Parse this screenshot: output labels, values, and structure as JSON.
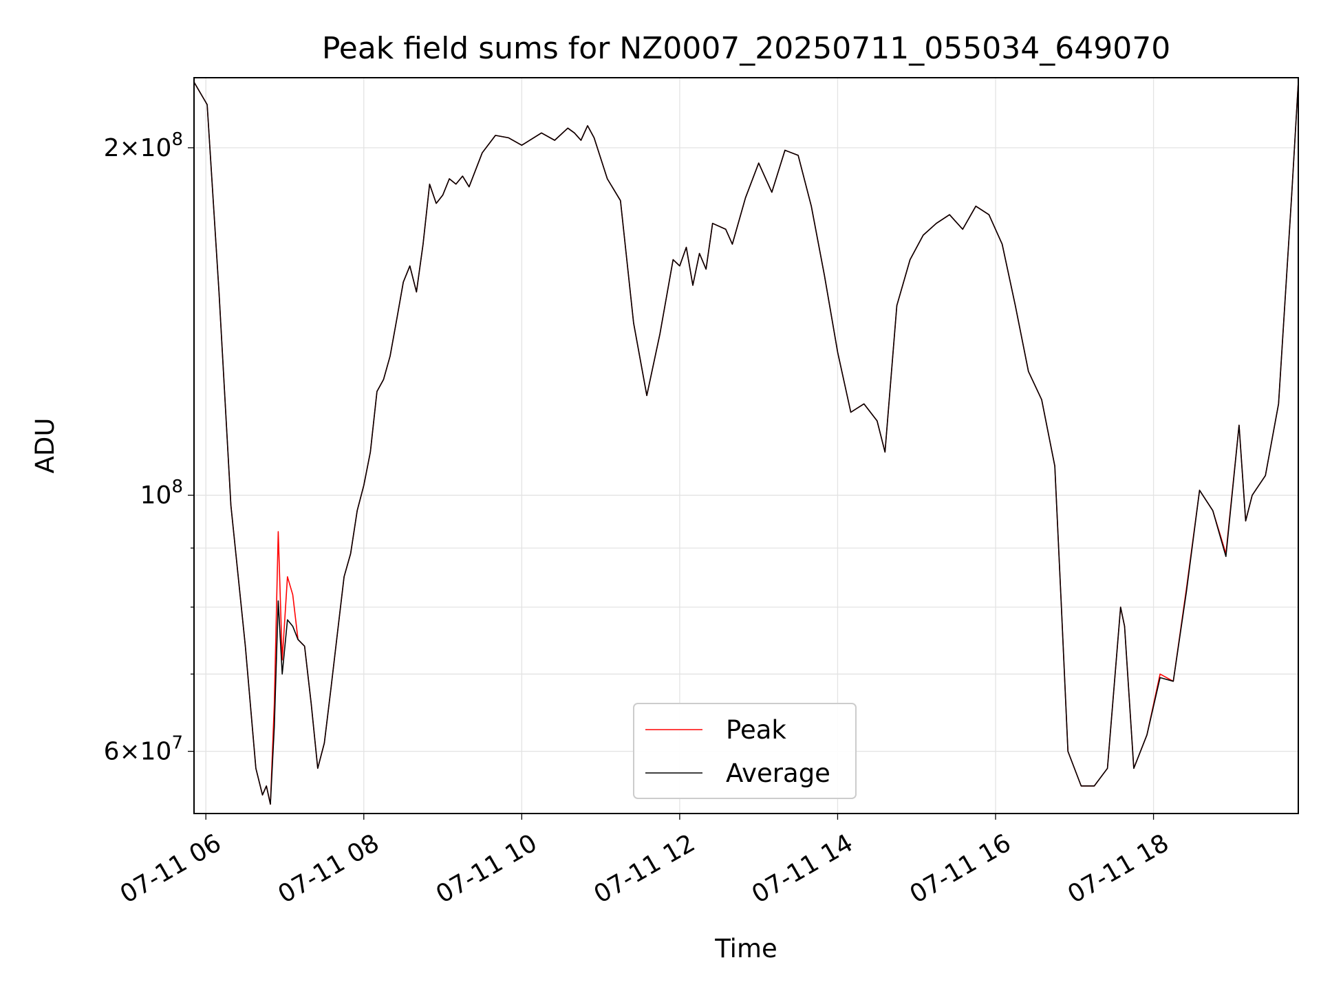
{
  "chart_data": {
    "type": "line",
    "title": "Peak field sums for NZ0007_20250711_055034_649070",
    "xlabel": "Time",
    "ylabel": "ADU",
    "yscale": "log",
    "ylim": [
      53000000,
      230000000
    ],
    "xlim": [
      "2025-07-11 05:51",
      "2025-07-11 19:50"
    ],
    "grid": true,
    "legend_position": "lower center",
    "x_tick_labels": [
      "07-11 06",
      "07-11 08",
      "07-11 10",
      "07-11 12",
      "07-11 14",
      "07-11 16",
      "07-11 18"
    ],
    "x_ticks": [
      "2025-07-11 06:00",
      "2025-07-11 08:00",
      "2025-07-11 10:00",
      "2025-07-11 12:00",
      "2025-07-11 14:00",
      "2025-07-11 16:00",
      "2025-07-11 18:00"
    ],
    "y_ticks": [
      {
        "value": 200000000,
        "mantissa": "2",
        "exponent": "8"
      },
      {
        "value": 100000000,
        "mantissa": "",
        "exponent": "8"
      },
      {
        "value": 60000000,
        "mantissa": "6",
        "exponent": "7"
      }
    ],
    "y_minor_ticks": [
      70000000,
      80000000,
      90000000
    ],
    "x": [
      "2025-07-11 05:51",
      "2025-07-11 06:01",
      "2025-07-11 06:10",
      "2025-07-11 06:19",
      "2025-07-11 06:30",
      "2025-07-11 06:38",
      "2025-07-11 06:43",
      "2025-07-11 06:46",
      "2025-07-11 06:49",
      "2025-07-11 06:52",
      "2025-07-11 06:55",
      "2025-07-11 06:58",
      "2025-07-11 07:02",
      "2025-07-11 07:06",
      "2025-07-11 07:10",
      "2025-07-11 07:15",
      "2025-07-11 07:20",
      "2025-07-11 07:25",
      "2025-07-11 07:30",
      "2025-07-11 07:35",
      "2025-07-11 07:40",
      "2025-07-11 07:45",
      "2025-07-11 07:50",
      "2025-07-11 07:55",
      "2025-07-11 08:00",
      "2025-07-11 08:05",
      "2025-07-11 08:10",
      "2025-07-11 08:15",
      "2025-07-11 08:20",
      "2025-07-11 08:25",
      "2025-07-11 08:30",
      "2025-07-11 08:35",
      "2025-07-11 08:40",
      "2025-07-11 08:45",
      "2025-07-11 08:50",
      "2025-07-11 08:55",
      "2025-07-11 09:00",
      "2025-07-11 09:05",
      "2025-07-11 09:10",
      "2025-07-11 09:15",
      "2025-07-11 09:20",
      "2025-07-11 09:30",
      "2025-07-11 09:40",
      "2025-07-11 09:50",
      "2025-07-11 10:00",
      "2025-07-11 10:15",
      "2025-07-11 10:25",
      "2025-07-11 10:35",
      "2025-07-11 10:40",
      "2025-07-11 10:45",
      "2025-07-11 10:50",
      "2025-07-11 10:55",
      "2025-07-11 11:05",
      "2025-07-11 11:15",
      "2025-07-11 11:25",
      "2025-07-11 11:35",
      "2025-07-11 11:45",
      "2025-07-11 11:55",
      "2025-07-11 12:00",
      "2025-07-11 12:05",
      "2025-07-11 12:10",
      "2025-07-11 12:15",
      "2025-07-11 12:20",
      "2025-07-11 12:25",
      "2025-07-11 12:35",
      "2025-07-11 12:40",
      "2025-07-11 12:50",
      "2025-07-11 13:00",
      "2025-07-11 13:10",
      "2025-07-11 13:20",
      "2025-07-11 13:30",
      "2025-07-11 13:40",
      "2025-07-11 13:50",
      "2025-07-11 14:00",
      "2025-07-11 14:10",
      "2025-07-11 14:20",
      "2025-07-11 14:30",
      "2025-07-11 14:36",
      "2025-07-11 14:45",
      "2025-07-11 14:55",
      "2025-07-11 15:05",
      "2025-07-11 15:15",
      "2025-07-11 15:25",
      "2025-07-11 15:35",
      "2025-07-11 15:45",
      "2025-07-11 15:55",
      "2025-07-11 16:05",
      "2025-07-11 16:15",
      "2025-07-11 16:25",
      "2025-07-11 16:35",
      "2025-07-11 16:45",
      "2025-07-11 16:50",
      "2025-07-11 16:55",
      "2025-07-11 17:05",
      "2025-07-11 17:15",
      "2025-07-11 17:25",
      "2025-07-11 17:35",
      "2025-07-11 17:38",
      "2025-07-11 17:45",
      "2025-07-11 17:55",
      "2025-07-11 18:05",
      "2025-07-11 18:15",
      "2025-07-11 18:25",
      "2025-07-11 18:35",
      "2025-07-11 18:45",
      "2025-07-11 18:55",
      "2025-07-11 19:05",
      "2025-07-11 19:10",
      "2025-07-11 19:15",
      "2025-07-11 19:25",
      "2025-07-11 19:35",
      "2025-07-11 19:45",
      "2025-07-11 19:50"
    ],
    "series": [
      {
        "name": "Peak",
        "color": "#ff0000",
        "values": [
          228000000,
          218000000,
          150000000,
          98000000,
          74000000,
          58000000,
          55000000,
          56000000,
          54000000,
          66000000,
          93000000,
          72000000,
          85000000,
          82000000,
          75000000,
          74000000,
          66000000,
          58000000,
          61000000,
          68000000,
          76000000,
          85000000,
          89000000,
          97000000,
          102000000,
          109000000,
          123000000,
          126000000,
          132000000,
          142000000,
          153000000,
          158000000,
          150000000,
          165000000,
          186000000,
          179000000,
          182000000,
          188000000,
          186000000,
          189000000,
          185000000,
          198000000,
          205000000,
          204000000,
          201000000,
          206000000,
          203000000,
          208000000,
          206000000,
          203000000,
          209000000,
          204000000,
          188000000,
          180000000,
          141000000,
          122000000,
          138000000,
          160000000,
          158000000,
          164000000,
          152000000,
          162000000,
          157000000,
          172000000,
          170000000,
          165000000,
          181000000,
          194000000,
          183000000,
          199000000,
          197000000,
          178000000,
          155000000,
          133000000,
          118000000,
          120000000,
          116000000,
          109000000,
          146000000,
          160000000,
          168000000,
          172000000,
          175000000,
          170000000,
          178000000,
          175000000,
          165000000,
          146000000,
          128000000,
          121000000,
          106000000,
          80000000,
          60000000,
          56000000,
          56000000,
          58000000,
          80000000,
          77000000,
          58000000,
          62000000,
          70000000,
          69000000,
          83000000,
          101000000,
          97000000,
          89000000,
          115000000,
          95000000,
          100000000,
          104000000,
          120000000,
          182000000,
          228000000
        ]
      },
      {
        "name": "Average",
        "color": "#000000",
        "values": [
          228000000,
          218000000,
          150000000,
          98000000,
          74000000,
          58000000,
          55000000,
          56000000,
          54000000,
          63000000,
          81000000,
          70000000,
          78000000,
          77000000,
          75000000,
          74000000,
          66000000,
          58000000,
          61000000,
          68000000,
          76000000,
          85000000,
          89000000,
          97000000,
          102000000,
          109000000,
          123000000,
          126000000,
          132000000,
          142000000,
          153000000,
          158000000,
          150000000,
          165000000,
          186000000,
          179000000,
          182000000,
          188000000,
          186000000,
          189000000,
          185000000,
          198000000,
          205000000,
          204000000,
          201000000,
          206000000,
          203000000,
          208000000,
          206000000,
          203000000,
          209000000,
          204000000,
          188000000,
          180000000,
          141000000,
          122000000,
          138000000,
          160000000,
          158000000,
          164000000,
          152000000,
          162000000,
          157000000,
          172000000,
          170000000,
          165000000,
          181000000,
          194000000,
          183000000,
          199000000,
          197000000,
          178000000,
          155000000,
          133000000,
          118000000,
          120000000,
          116000000,
          109000000,
          146000000,
          160000000,
          168000000,
          172000000,
          175000000,
          170000000,
          178000000,
          175000000,
          165000000,
          146000000,
          128000000,
          121000000,
          106000000,
          80000000,
          60000000,
          56000000,
          56000000,
          58000000,
          80000000,
          77000000,
          58000000,
          62000000,
          69500000,
          69000000,
          82500000,
          101000000,
          97000000,
          88500000,
          115000000,
          95000000,
          100000000,
          104000000,
          120000000,
          182000000,
          228000000
        ]
      }
    ]
  }
}
